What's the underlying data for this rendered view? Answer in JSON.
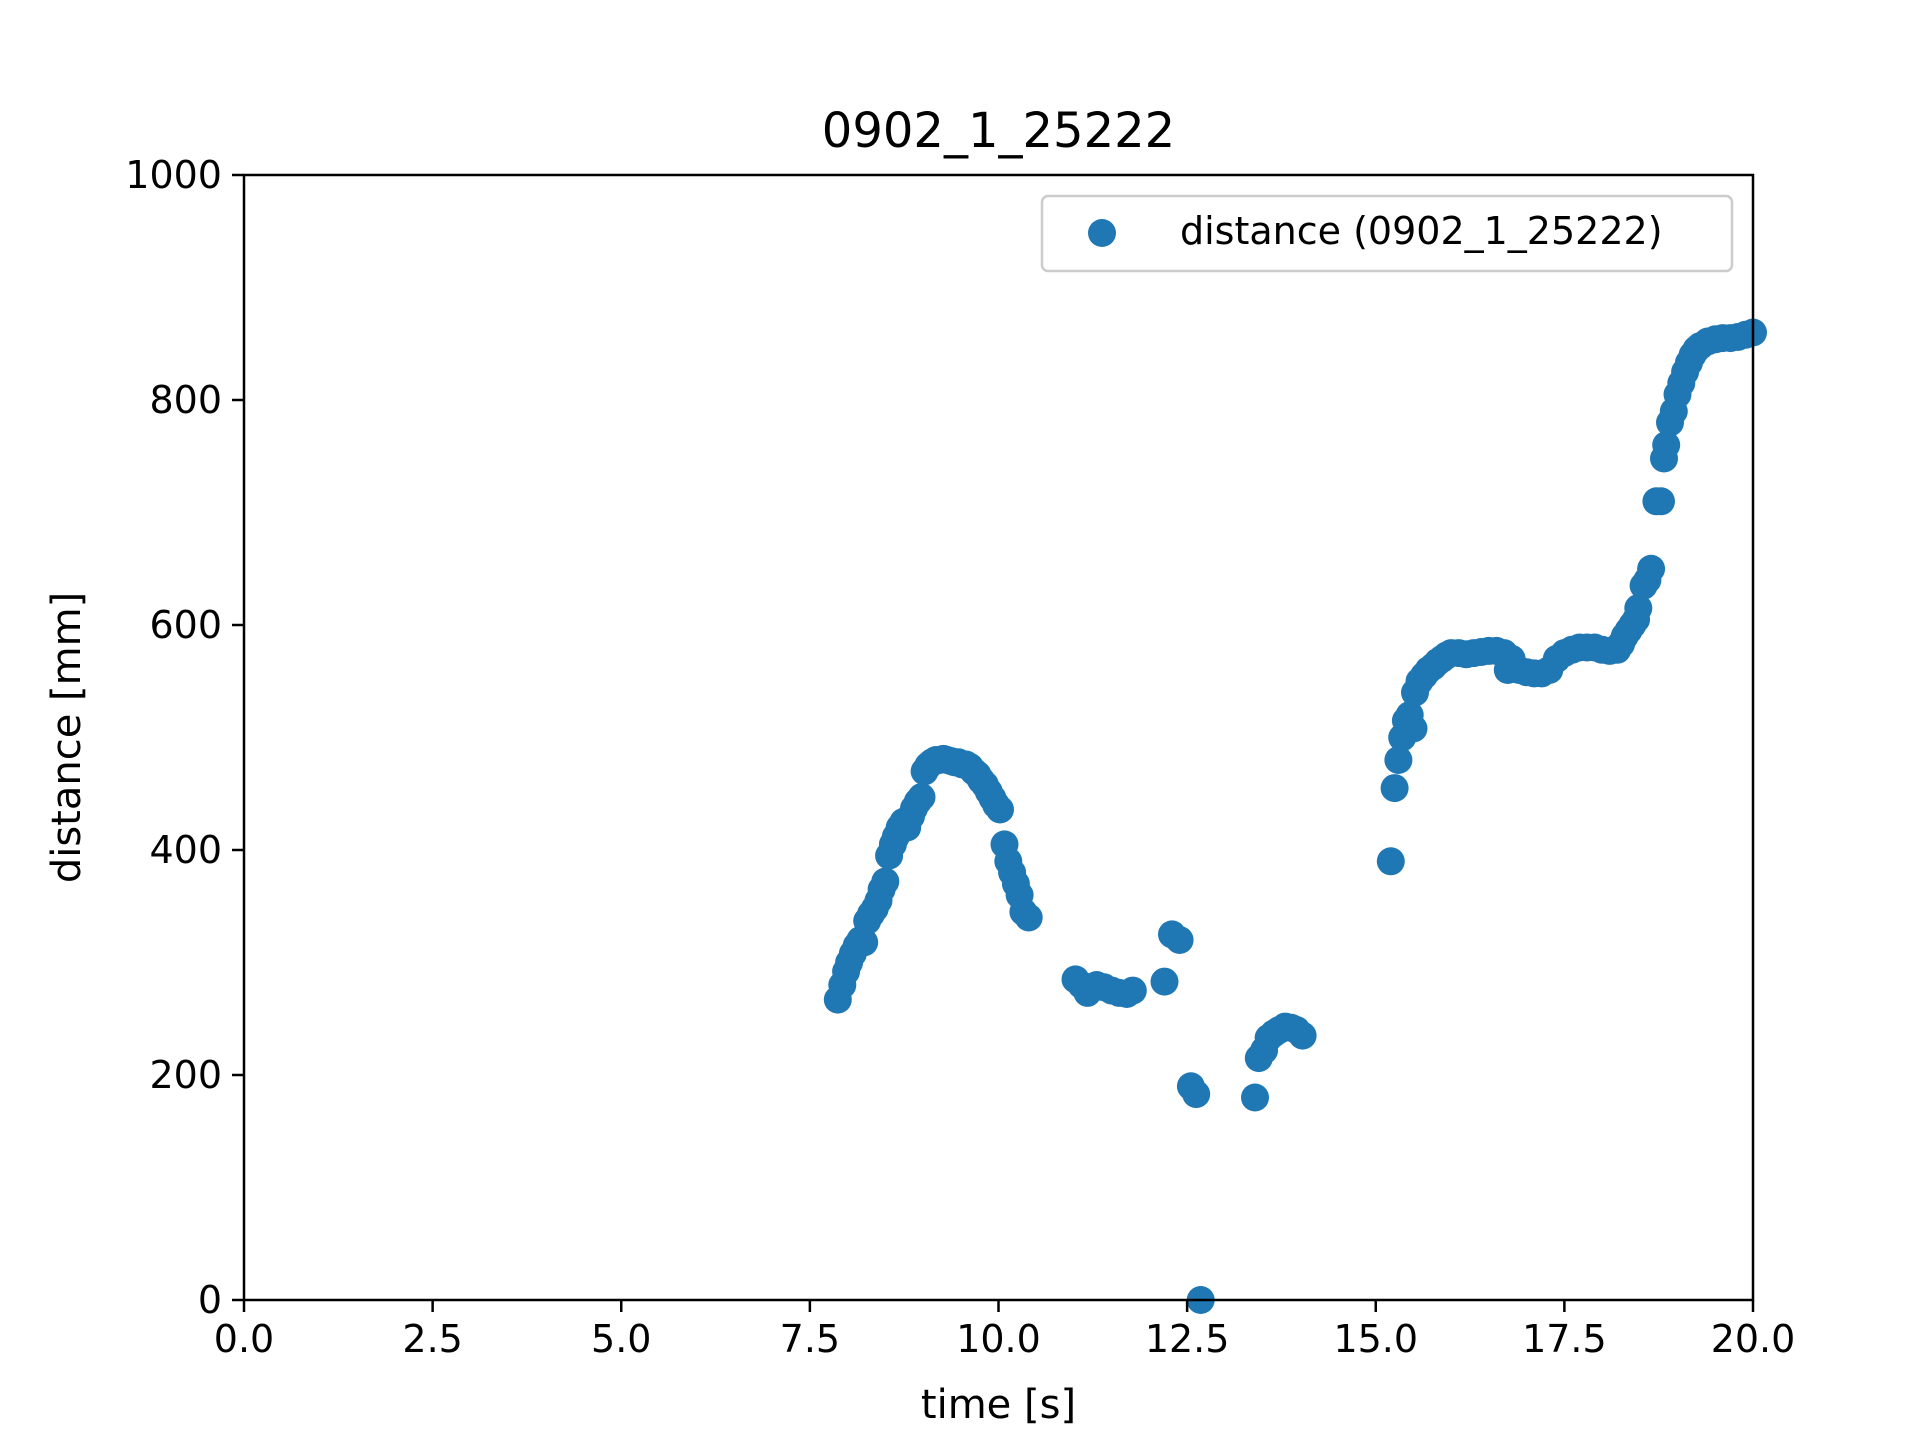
{
  "chart_data": {
    "type": "scatter",
    "title": "0902_1_25222",
    "xlabel": "time [s]",
    "ylabel": "distance [mm]",
    "xlim": [
      0,
      20
    ],
    "ylim": [
      0,
      1000
    ],
    "xticks": [
      "0.0",
      "2.5",
      "5.0",
      "7.5",
      "10.0",
      "12.5",
      "15.0",
      "17.5",
      "20.0"
    ],
    "yticks": [
      "0",
      "200",
      "400",
      "600",
      "800",
      "1000"
    ],
    "grid": false,
    "legend_position": "top-right",
    "series": [
      {
        "name": "distance (0902_1_25222)",
        "color": "#1f77b4",
        "points": [
          [
            7.87,
            267
          ],
          [
            7.93,
            280
          ],
          [
            7.98,
            292
          ],
          [
            8.02,
            300
          ],
          [
            8.07,
            308
          ],
          [
            8.12,
            315
          ],
          [
            8.17,
            320
          ],
          [
            8.22,
            318
          ],
          [
            8.26,
            337
          ],
          [
            8.31,
            343
          ],
          [
            8.36,
            348
          ],
          [
            8.41,
            355
          ],
          [
            8.45,
            365
          ],
          [
            8.5,
            372
          ],
          [
            8.55,
            395
          ],
          [
            8.6,
            405
          ],
          [
            8.64,
            412
          ],
          [
            8.69,
            420
          ],
          [
            8.74,
            425
          ],
          [
            8.79,
            420
          ],
          [
            8.84,
            430
          ],
          [
            8.88,
            437
          ],
          [
            8.93,
            443
          ],
          [
            8.98,
            447
          ],
          [
            9.02,
            470
          ],
          [
            9.07,
            475
          ],
          [
            9.12,
            478
          ],
          [
            9.17,
            480
          ],
          [
            9.22,
            480
          ],
          [
            9.27,
            481
          ],
          [
            9.32,
            480
          ],
          [
            9.37,
            479
          ],
          [
            9.42,
            478
          ],
          [
            9.47,
            478
          ],
          [
            9.52,
            476
          ],
          [
            9.57,
            476
          ],
          [
            9.62,
            474
          ],
          [
            9.67,
            470
          ],
          [
            9.72,
            467
          ],
          [
            9.77,
            462
          ],
          [
            9.82,
            458
          ],
          [
            9.87,
            452
          ],
          [
            9.92,
            446
          ],
          [
            9.97,
            440
          ],
          [
            10.02,
            436
          ],
          [
            10.08,
            405
          ],
          [
            10.13,
            390
          ],
          [
            10.18,
            380
          ],
          [
            10.23,
            370
          ],
          [
            10.28,
            360
          ],
          [
            10.33,
            345
          ],
          [
            10.4,
            340
          ],
          [
            11.02,
            285
          ],
          [
            11.1,
            280
          ],
          [
            11.18,
            273
          ],
          [
            11.3,
            280
          ],
          [
            11.4,
            278
          ],
          [
            11.5,
            275
          ],
          [
            11.6,
            273
          ],
          [
            11.7,
            272
          ],
          [
            11.78,
            275
          ],
          [
            12.2,
            283
          ],
          [
            12.3,
            325
          ],
          [
            12.4,
            320
          ],
          [
            12.55,
            190
          ],
          [
            12.62,
            183
          ],
          [
            12.68,
            0
          ],
          [
            13.4,
            180
          ],
          [
            13.45,
            215
          ],
          [
            13.52,
            222
          ],
          [
            13.58,
            233
          ],
          [
            13.65,
            237
          ],
          [
            13.72,
            240
          ],
          [
            13.8,
            243
          ],
          [
            13.88,
            242
          ],
          [
            13.95,
            240
          ],
          [
            14.03,
            235
          ],
          [
            15.2,
            390
          ],
          [
            15.25,
            455
          ],
          [
            15.3,
            480
          ],
          [
            15.35,
            500
          ],
          [
            15.4,
            515
          ],
          [
            15.45,
            520
          ],
          [
            15.5,
            508
          ],
          [
            15.52,
            540
          ],
          [
            15.58,
            550
          ],
          [
            15.64,
            555
          ],
          [
            15.7,
            560
          ],
          [
            15.76,
            563
          ],
          [
            15.82,
            567
          ],
          [
            15.88,
            570
          ],
          [
            15.94,
            573
          ],
          [
            16.0,
            575
          ],
          [
            16.1,
            575
          ],
          [
            16.2,
            574
          ],
          [
            16.3,
            575
          ],
          [
            16.4,
            576
          ],
          [
            16.5,
            577
          ],
          [
            16.6,
            577
          ],
          [
            16.7,
            575
          ],
          [
            16.75,
            560
          ],
          [
            16.8,
            570
          ],
          [
            16.9,
            560
          ],
          [
            17.0,
            558
          ],
          [
            17.1,
            557
          ],
          [
            17.2,
            557
          ],
          [
            17.3,
            560
          ],
          [
            17.4,
            570
          ],
          [
            17.5,
            575
          ],
          [
            17.6,
            578
          ],
          [
            17.7,
            580
          ],
          [
            17.8,
            580
          ],
          [
            17.9,
            580
          ],
          [
            18.0,
            578
          ],
          [
            18.1,
            577
          ],
          [
            18.2,
            578
          ],
          [
            18.25,
            583
          ],
          [
            18.3,
            590
          ],
          [
            18.35,
            595
          ],
          [
            18.4,
            600
          ],
          [
            18.45,
            605
          ],
          [
            18.48,
            615
          ],
          [
            18.55,
            635
          ],
          [
            18.6,
            640
          ],
          [
            18.65,
            650
          ],
          [
            18.72,
            710
          ],
          [
            18.78,
            710
          ],
          [
            18.82,
            748
          ],
          [
            18.85,
            760
          ],
          [
            18.9,
            780
          ],
          [
            18.95,
            790
          ],
          [
            19.0,
            805
          ],
          [
            19.05,
            815
          ],
          [
            19.1,
            825
          ],
          [
            19.15,
            833
          ],
          [
            19.2,
            840
          ],
          [
            19.25,
            845
          ],
          [
            19.3,
            848
          ],
          [
            19.4,
            852
          ],
          [
            19.5,
            854
          ],
          [
            19.6,
            855
          ],
          [
            19.7,
            855
          ],
          [
            19.8,
            856
          ],
          [
            19.9,
            858
          ],
          [
            20.0,
            860
          ]
        ]
      }
    ]
  }
}
